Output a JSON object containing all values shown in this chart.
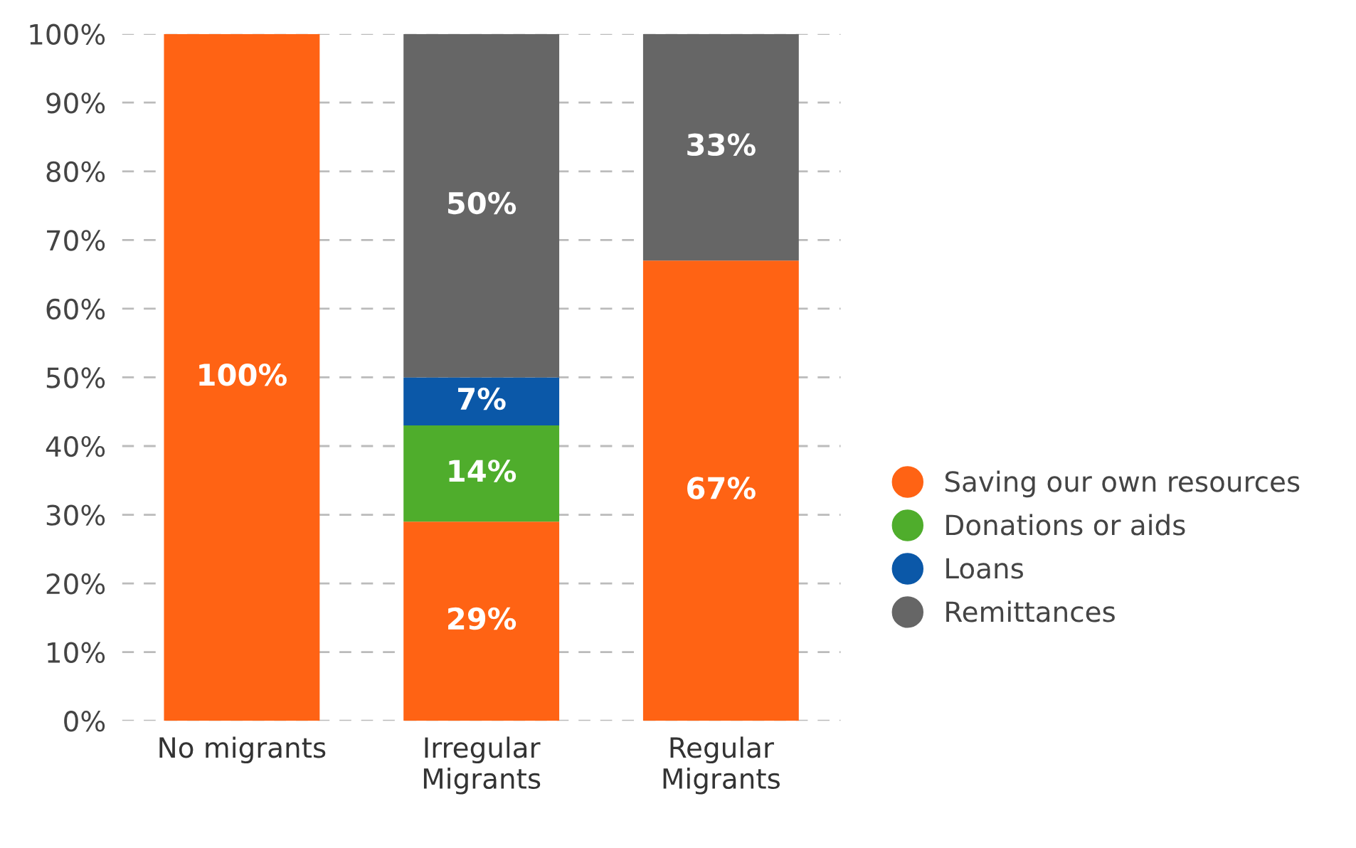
{
  "chart_data": {
    "type": "bar",
    "stacked": true,
    "categories": [
      "No migrants",
      "Irregular\nMigrants",
      "Regular\nMigrants"
    ],
    "series": [
      {
        "name": "Saving our own resources",
        "color": "#ff6314",
        "values": [
          100,
          29,
          67
        ],
        "value_labels": [
          "100%",
          "29%",
          "67%"
        ]
      },
      {
        "name": "Donations or aids",
        "color": "#4fad2c",
        "values": [
          0,
          14,
          0
        ],
        "value_labels": [
          null,
          "14%",
          null
        ]
      },
      {
        "name": "Loans",
        "color": "#0b58a8",
        "values": [
          0,
          7,
          0
        ],
        "value_labels": [
          null,
          "7%",
          null
        ]
      },
      {
        "name": "Remittances",
        "color": "#666666",
        "values": [
          0,
          50,
          33
        ],
        "value_labels": [
          null,
          "50%",
          "33%"
        ]
      }
    ],
    "ylim": [
      0,
      100
    ],
    "yticks": [
      {
        "value": 0,
        "label": "0%"
      },
      {
        "value": 10,
        "label": "10%"
      },
      {
        "value": 20,
        "label": "20%"
      },
      {
        "value": 30,
        "label": "30%"
      },
      {
        "value": 40,
        "label": "40%"
      },
      {
        "value": 50,
        "label": "50%"
      },
      {
        "value": 60,
        "label": "60%"
      },
      {
        "value": 70,
        "label": "70%"
      },
      {
        "value": 80,
        "label": "80%"
      },
      {
        "value": 90,
        "label": "90%"
      },
      {
        "value": 100,
        "label": "100%"
      }
    ],
    "grid": "y",
    "legend": "right",
    "marker": "circle"
  }
}
